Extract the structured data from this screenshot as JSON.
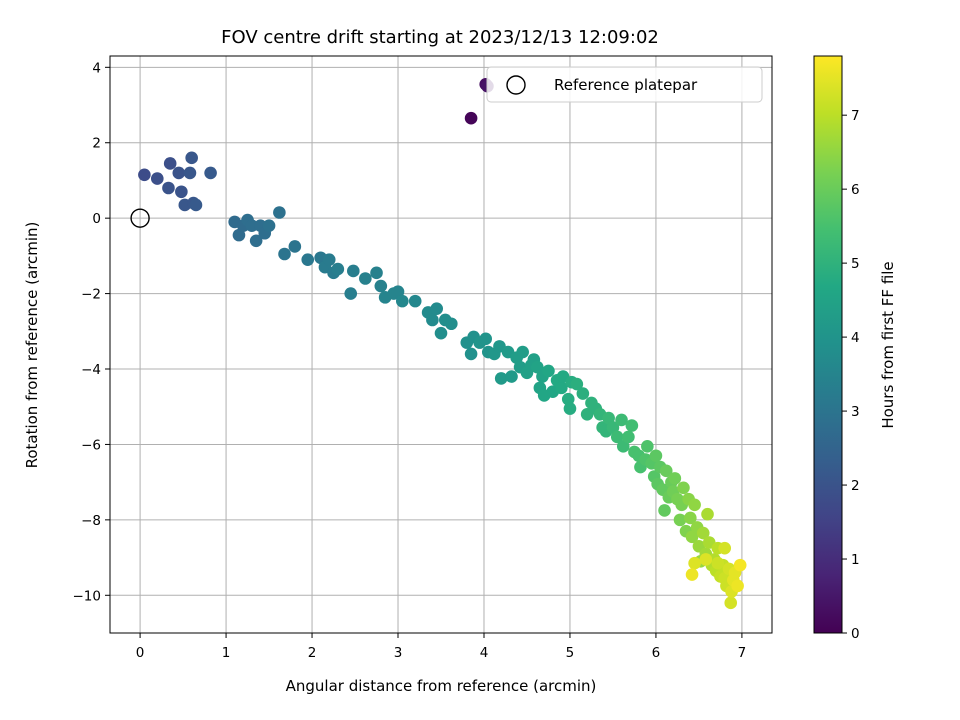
{
  "chart_data": {
    "type": "scatter",
    "title": "FOV centre drift starting at 2023/12/13 12:09:02",
    "xlabel": "Angular distance from reference (arcmin)",
    "ylabel": "Rotation from reference (arcmin)",
    "xlim": [
      -0.35,
      7.35
    ],
    "ylim": [
      -11.0,
      4.3
    ],
    "xticks": [
      0,
      1,
      2,
      3,
      4,
      5,
      6,
      7
    ],
    "yticks": [
      -10,
      -8,
      -6,
      -4,
      -2,
      0,
      2,
      4
    ],
    "grid": true,
    "colormap": "viridis",
    "colorbar": {
      "label": "Hours from first FF file",
      "min": 0,
      "max": 7.8,
      "ticks": [
        0,
        1,
        2,
        3,
        4,
        5,
        6,
        7
      ]
    },
    "legend": {
      "position": "top-right",
      "entries": [
        "Reference platepar"
      ]
    },
    "reference_point": {
      "x": 0,
      "y": 0,
      "label": "Reference platepar"
    },
    "series": [
      {
        "points": [
          [
            3.85,
            2.65,
            0.1
          ],
          [
            4.02,
            3.55,
            0.3
          ],
          [
            4.04,
            3.5,
            0.4
          ],
          [
            0.05,
            1.15,
            1.8
          ],
          [
            0.2,
            1.05,
            1.9
          ],
          [
            0.35,
            1.45,
            1.9
          ],
          [
            0.33,
            0.8,
            2.0
          ],
          [
            0.45,
            1.2,
            2.0
          ],
          [
            0.48,
            0.7,
            2.0
          ],
          [
            0.52,
            0.35,
            2.1
          ],
          [
            0.58,
            1.2,
            2.1
          ],
          [
            0.6,
            1.6,
            2.1
          ],
          [
            0.62,
            0.4,
            2.1
          ],
          [
            0.65,
            0.35,
            2.2
          ],
          [
            0.82,
            1.2,
            2.2
          ],
          [
            1.1,
            -0.1,
            2.7
          ],
          [
            1.15,
            -0.45,
            2.7
          ],
          [
            1.2,
            -0.2,
            2.7
          ],
          [
            1.25,
            -0.05,
            2.8
          ],
          [
            1.3,
            -0.2,
            2.8
          ],
          [
            1.35,
            -0.6,
            2.8
          ],
          [
            1.4,
            -0.2,
            2.8
          ],
          [
            1.45,
            -0.4,
            2.8
          ],
          [
            1.5,
            -0.2,
            2.9
          ],
          [
            1.62,
            0.15,
            2.9
          ],
          [
            1.68,
            -0.95,
            3.0
          ],
          [
            1.8,
            -0.75,
            3.0
          ],
          [
            1.95,
            -1.1,
            3.1
          ],
          [
            2.1,
            -1.05,
            3.1
          ],
          [
            2.15,
            -1.3,
            3.2
          ],
          [
            2.2,
            -1.1,
            3.2
          ],
          [
            2.25,
            -1.45,
            3.2
          ],
          [
            2.3,
            -1.35,
            3.3
          ],
          [
            2.45,
            -2.0,
            3.3
          ],
          [
            2.48,
            -1.4,
            3.3
          ],
          [
            2.62,
            -1.6,
            3.4
          ],
          [
            2.75,
            -1.45,
            3.4
          ],
          [
            2.8,
            -1.8,
            3.4
          ],
          [
            2.85,
            -2.1,
            3.5
          ],
          [
            2.95,
            -2.0,
            3.5
          ],
          [
            3.0,
            -1.95,
            3.5
          ],
          [
            3.05,
            -2.2,
            3.6
          ],
          [
            3.2,
            -2.2,
            3.6
          ],
          [
            3.35,
            -2.5,
            3.7
          ],
          [
            3.4,
            -2.7,
            3.7
          ],
          [
            3.45,
            -2.4,
            3.7
          ],
          [
            3.5,
            -3.05,
            3.8
          ],
          [
            3.55,
            -2.7,
            3.8
          ],
          [
            3.62,
            -2.8,
            3.8
          ],
          [
            3.8,
            -3.3,
            3.9
          ],
          [
            3.85,
            -3.6,
            3.9
          ],
          [
            3.88,
            -3.15,
            3.9
          ],
          [
            3.95,
            -3.3,
            4.0
          ],
          [
            4.02,
            -3.2,
            4.0
          ],
          [
            4.05,
            -3.55,
            4.0
          ],
          [
            4.12,
            -3.6,
            4.1
          ],
          [
            4.18,
            -3.4,
            4.1
          ],
          [
            4.2,
            -4.25,
            4.2
          ],
          [
            4.28,
            -3.55,
            4.2
          ],
          [
            4.32,
            -4.2,
            4.2
          ],
          [
            4.38,
            -3.7,
            4.3
          ],
          [
            4.42,
            -3.95,
            4.3
          ],
          [
            4.45,
            -3.55,
            4.3
          ],
          [
            4.5,
            -4.1,
            4.4
          ],
          [
            4.55,
            -3.9,
            4.4
          ],
          [
            4.58,
            -3.75,
            4.4
          ],
          [
            4.62,
            -3.95,
            4.5
          ],
          [
            4.65,
            -4.5,
            4.5
          ],
          [
            4.68,
            -4.2,
            4.5
          ],
          [
            4.7,
            -4.7,
            4.6
          ],
          [
            4.75,
            -4.05,
            4.6
          ],
          [
            4.8,
            -4.6,
            4.6
          ],
          [
            4.85,
            -4.3,
            4.7
          ],
          [
            4.9,
            -4.5,
            4.7
          ],
          [
            4.92,
            -4.2,
            4.7
          ],
          [
            4.98,
            -4.8,
            4.8
          ],
          [
            5.0,
            -5.05,
            4.8
          ],
          [
            5.02,
            -4.35,
            4.8
          ],
          [
            5.08,
            -4.4,
            4.9
          ],
          [
            5.15,
            -4.65,
            4.9
          ],
          [
            5.2,
            -5.2,
            5.0
          ],
          [
            5.25,
            -4.9,
            5.0
          ],
          [
            5.3,
            -5.05,
            5.0
          ],
          [
            5.35,
            -5.2,
            5.1
          ],
          [
            5.38,
            -5.55,
            5.1
          ],
          [
            5.42,
            -5.65,
            5.1
          ],
          [
            5.45,
            -5.3,
            5.2
          ],
          [
            5.5,
            -5.55,
            5.2
          ],
          [
            5.55,
            -5.8,
            5.3
          ],
          [
            5.6,
            -5.35,
            5.3
          ],
          [
            5.62,
            -6.05,
            5.3
          ],
          [
            5.68,
            -5.8,
            5.4
          ],
          [
            5.72,
            -5.5,
            5.4
          ],
          [
            5.75,
            -6.2,
            5.5
          ],
          [
            5.8,
            -6.3,
            5.5
          ],
          [
            5.82,
            -6.6,
            5.5
          ],
          [
            5.88,
            -6.4,
            5.6
          ],
          [
            5.9,
            -6.05,
            5.6
          ],
          [
            5.95,
            -6.5,
            5.7
          ],
          [
            5.98,
            -6.85,
            5.7
          ],
          [
            6.0,
            -6.3,
            5.8
          ],
          [
            6.02,
            -7.05,
            5.8
          ],
          [
            6.05,
            -6.6,
            5.8
          ],
          [
            6.08,
            -7.2,
            5.9
          ],
          [
            6.1,
            -7.75,
            5.9
          ],
          [
            6.12,
            -6.7,
            6.0
          ],
          [
            6.15,
            -7.4,
            6.0
          ],
          [
            6.18,
            -7.0,
            6.0
          ],
          [
            6.2,
            -7.25,
            6.1
          ],
          [
            6.22,
            -6.9,
            6.1
          ],
          [
            6.25,
            -7.45,
            6.2
          ],
          [
            6.28,
            -8.0,
            6.2
          ],
          [
            6.3,
            -7.6,
            6.2
          ],
          [
            6.32,
            -7.15,
            6.3
          ],
          [
            6.35,
            -8.3,
            6.3
          ],
          [
            6.38,
            -7.45,
            6.4
          ],
          [
            6.4,
            -7.95,
            6.4
          ],
          [
            6.42,
            -8.45,
            6.5
          ],
          [
            6.45,
            -7.6,
            6.5
          ],
          [
            6.48,
            -8.2,
            6.5
          ],
          [
            6.5,
            -8.7,
            6.6
          ],
          [
            6.52,
            -9.1,
            6.6
          ],
          [
            6.55,
            -8.35,
            6.7
          ],
          [
            6.58,
            -8.9,
            6.7
          ],
          [
            6.6,
            -7.85,
            6.8
          ],
          [
            6.62,
            -8.6,
            6.8
          ],
          [
            6.65,
            -9.2,
            6.9
          ],
          [
            6.68,
            -9.05,
            6.9
          ],
          [
            6.7,
            -9.35,
            7.0
          ],
          [
            6.72,
            -8.75,
            7.0
          ],
          [
            6.75,
            -9.5,
            7.1
          ],
          [
            6.78,
            -9.2,
            7.1
          ],
          [
            6.8,
            -9.55,
            7.2
          ],
          [
            6.82,
            -9.75,
            7.2
          ],
          [
            6.85,
            -9.3,
            7.3
          ],
          [
            6.87,
            -10.2,
            7.3
          ],
          [
            6.88,
            -9.9,
            7.4
          ],
          [
            6.9,
            -9.6,
            7.5
          ],
          [
            6.92,
            -9.4,
            7.5
          ],
          [
            6.95,
            -9.75,
            7.6
          ],
          [
            6.98,
            -9.2,
            7.7
          ],
          [
            6.45,
            -9.15,
            7.4
          ],
          [
            6.42,
            -9.45,
            7.6
          ],
          [
            6.72,
            -9.15,
            7.2
          ],
          [
            6.58,
            -9.05,
            7.4
          ],
          [
            6.8,
            -8.75,
            7.3
          ]
        ]
      }
    ]
  }
}
